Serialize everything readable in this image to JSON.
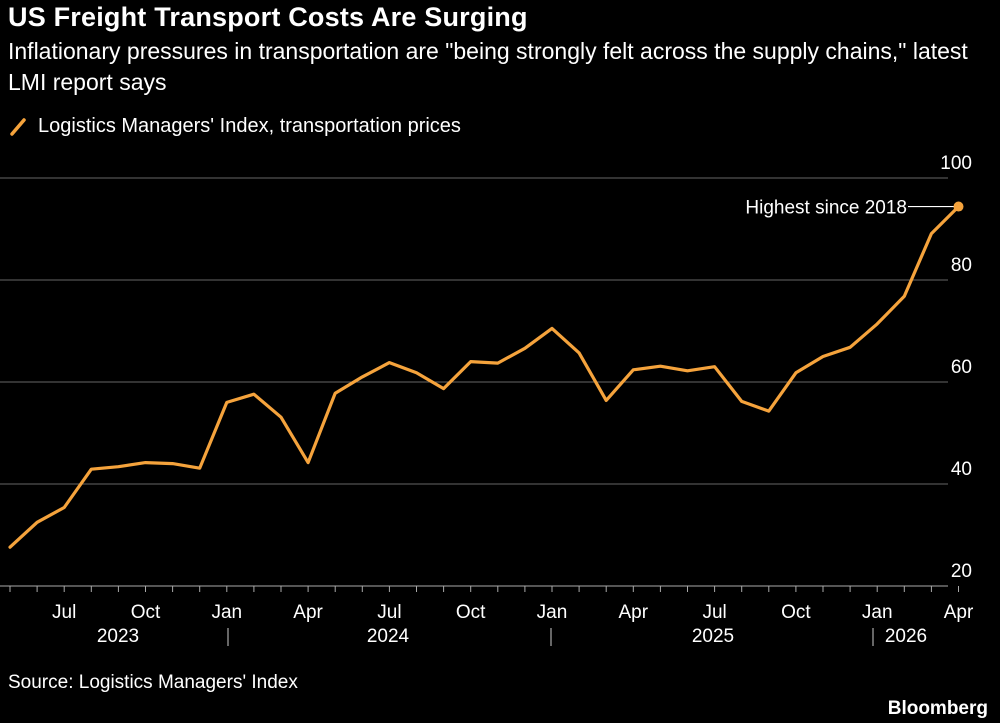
{
  "title": "US Freight Transport Costs Are Surging",
  "subtitle": "Inflationary pressures in transportation are \"being strongly felt across the supply chains,\" latest LMI report says",
  "legend": {
    "label": "Logistics Managers' Index, transportation prices"
  },
  "annotation": "Highest since 2018",
  "source": "Source: Logistics Managers' Index",
  "brand": "Bloomberg",
  "colors": {
    "background": "#000000",
    "line": "#f5a33c",
    "grid": "#666666",
    "text": "#ffffff"
  },
  "chart_data": {
    "type": "line",
    "ylim": [
      20,
      100
    ],
    "y_ticks": [
      20,
      40,
      60,
      80,
      100
    ],
    "grid": true,
    "legend_position": "top-left",
    "x_tick_labels": [
      "Jul",
      "Oct",
      "Jan",
      "Apr",
      "Jul",
      "Oct",
      "Jan",
      "Apr",
      "Jul",
      "Oct",
      "Jan",
      "Apr"
    ],
    "year_labels": [
      "2023",
      "2024",
      "2025",
      "2026"
    ],
    "series": [
      {
        "name": "Logistics Managers' Index, transportation prices",
        "x": [
          "2023-05",
          "2023-06",
          "2023-07",
          "2023-08",
          "2023-09",
          "2023-10",
          "2023-11",
          "2023-12",
          "2024-01",
          "2024-02",
          "2024-03",
          "2024-04",
          "2024-05",
          "2024-06",
          "2024-07",
          "2024-08",
          "2024-09",
          "2024-10",
          "2024-11",
          "2024-12",
          "2025-01",
          "2025-02",
          "2025-03",
          "2025-04",
          "2025-05",
          "2025-06",
          "2025-07",
          "2025-08",
          "2025-09",
          "2025-10",
          "2025-11",
          "2025-12",
          "2026-01",
          "2026-02",
          "2026-03",
          "2026-04"
        ],
        "values": [
          27.6,
          32.5,
          35.4,
          42.9,
          43.4,
          44.2,
          44.0,
          43.1,
          56.0,
          57.6,
          53.1,
          44.2,
          57.8,
          61.0,
          63.8,
          61.8,
          58.7,
          64.0,
          63.7,
          66.6,
          70.5,
          65.7,
          56.4,
          62.4,
          63.1,
          62.2,
          63.0,
          56.2,
          54.3,
          61.8,
          65.0,
          66.8,
          71.4,
          76.8,
          89.1,
          94.4
        ]
      }
    ]
  }
}
